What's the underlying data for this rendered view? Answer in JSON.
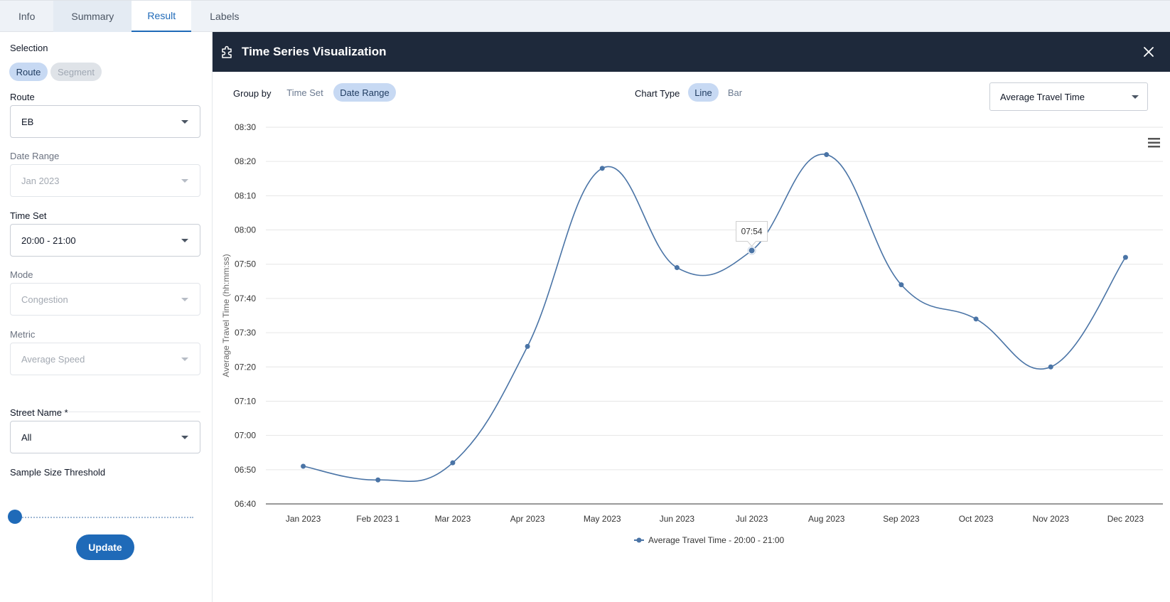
{
  "tabs": [
    {
      "label": "Info"
    },
    {
      "label": "Summary"
    },
    {
      "label": "Result",
      "active": true
    },
    {
      "label": "Labels"
    }
  ],
  "sidebar": {
    "selection_label": "Selection",
    "selection_options": [
      "Route",
      "Segment"
    ],
    "selection_active": "Route",
    "route_label": "Route",
    "route_value": "EB",
    "date_range_label": "Date Range",
    "date_range_value": "Jan 2023",
    "time_set_label": "Time Set",
    "time_set_value": "20:00 - 21:00",
    "mode_label": "Mode",
    "mode_value": "Congestion",
    "metric_label": "Metric",
    "metric_value": "Average Speed",
    "street_name_label": "Street Name *",
    "street_name_value": "All",
    "sample_size_label": "Sample Size Threshold",
    "sample_size_level": 0,
    "update_label": "Update"
  },
  "panel": {
    "title": "Time Series Visualization",
    "group_by_label": "Group by",
    "group_by_options": [
      "Time Set",
      "Date Range"
    ],
    "group_by_active": "Date Range",
    "chart_type_label": "Chart Type",
    "chart_type_options": [
      "Line",
      "Bar"
    ],
    "chart_type_active": "Line",
    "metric_select_value": "Average Travel Time",
    "icons": {
      "header": "puzzle-icon",
      "close": "close-icon",
      "menu": "hamburger-menu-icon"
    }
  },
  "colors": {
    "accent": "#1f6ab8",
    "header_bg": "#1e293b",
    "series": "#4a74a6",
    "chip_active": "#c7d9f3"
  },
  "chart_data": {
    "type": "line",
    "ylabel": "Average Travel Time (hh:mm:ss)",
    "categories": [
      "Jan 2023",
      "Feb 2023 1",
      "Mar 2023",
      "Apr 2023",
      "May 2023",
      "Jun 2023",
      "Jul 2023",
      "Aug 2023",
      "Sep 2023",
      "Oct 2023",
      "Nov 2023",
      "Dec 2023"
    ],
    "series": [
      {
        "name": "Average Travel Time - 20:00 - 21:00",
        "values": [
          "06:51",
          "06:47",
          "06:52",
          "07:26",
          "08:18",
          "07:49",
          "07:54",
          "08:22",
          "07:44",
          "07:34",
          "07:20",
          "07:52"
        ]
      }
    ],
    "y_ticks": [
      "06:40",
      "06:50",
      "07:00",
      "07:10",
      "07:20",
      "07:30",
      "07:40",
      "07:50",
      "08:00",
      "08:10",
      "08:20",
      "08:30"
    ],
    "ylim": [
      "06:40",
      "08:30"
    ],
    "grid": true,
    "legend": "bottom-center",
    "tooltip": {
      "category": "Jul 2023",
      "text": "07:54"
    },
    "smooth": true
  }
}
